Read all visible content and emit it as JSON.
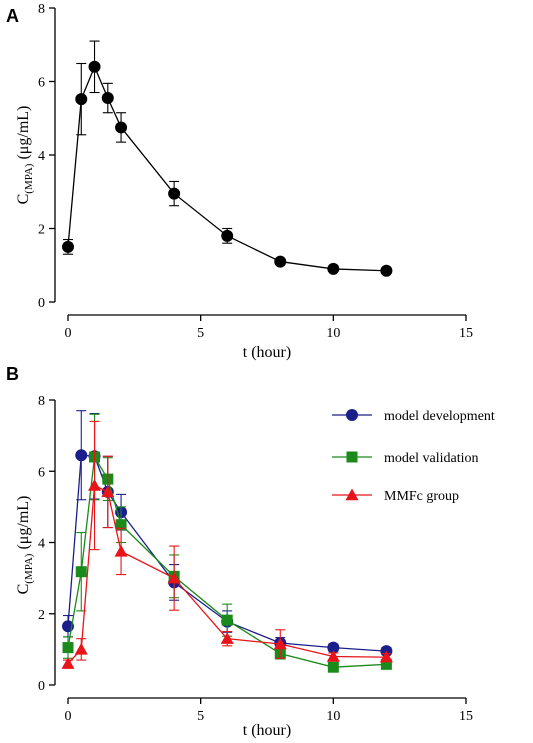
{
  "chart_data": [
    {
      "type": "line",
      "panel_label": "A",
      "xlabel": "t (hour)",
      "ylabel_main": "C",
      "ylabel_sub": "(MPA)",
      "ylabel_unit": " (μg/mL)",
      "xlim": [
        0,
        15
      ],
      "ylim": [
        0,
        8
      ],
      "xticks": [
        0,
        5,
        10,
        15
      ],
      "yticks": [
        0,
        2,
        4,
        6,
        8
      ],
      "xtick_labels": [
        "0",
        "5",
        "10",
        "15"
      ],
      "ytick_labels": [
        "0",
        "2",
        "4",
        "6",
        "8"
      ],
      "grid": false,
      "series": [
        {
          "marker": "circle",
          "color": "#000000",
          "x": [
            0,
            0.5,
            1,
            1.5,
            2,
            4,
            6,
            8,
            10,
            12
          ],
          "y": [
            1.5,
            5.52,
            6.4,
            5.55,
            4.75,
            2.95,
            1.8,
            1.1,
            0.9,
            0.85
          ],
          "err": [
            0.2,
            0.97,
            0.7,
            0.4,
            0.4,
            0.33,
            0.2,
            0,
            0,
            0
          ]
        }
      ]
    },
    {
      "type": "line",
      "panel_label": "B",
      "xlabel": "t (hour)",
      "ylabel_main": "C",
      "ylabel_sub": "(MPA)",
      "ylabel_unit": " (μg/mL)",
      "xlim": [
        0,
        15
      ],
      "ylim": [
        0,
        8
      ],
      "xticks": [
        0,
        5,
        10,
        15
      ],
      "yticks": [
        0,
        2,
        4,
        6,
        8
      ],
      "xtick_labels": [
        "0",
        "5",
        "10",
        "15"
      ],
      "ytick_labels": [
        "0",
        "2",
        "4",
        "6",
        "8"
      ],
      "grid": false,
      "legend_position": "top-right",
      "series": [
        {
          "name": "model development",
          "marker": "circle",
          "color": "#1a1f8c",
          "x": [
            0,
            0.5,
            1,
            1.5,
            2,
            4,
            6,
            8,
            10,
            12
          ],
          "y": [
            1.65,
            6.45,
            6.42,
            5.42,
            4.85,
            2.88,
            1.78,
            1.18,
            1.05,
            0.95
          ],
          "err": [
            0.3,
            1.25,
            1.2,
            1.0,
            0.5,
            0.5,
            0.3,
            0.15,
            0.1,
            0.1
          ]
        },
        {
          "name": "model validation",
          "marker": "square",
          "color": "#1a8a1a",
          "x": [
            0,
            0.5,
            1,
            1.5,
            2,
            4,
            6,
            8,
            10,
            12
          ],
          "y": [
            1.05,
            3.18,
            6.4,
            5.78,
            4.5,
            3.05,
            1.82,
            0.88,
            0.5,
            0.58
          ],
          "err": [
            0.3,
            1.1,
            1.2,
            0.6,
            0.5,
            0.6,
            0.45,
            0.15,
            0.1,
            0.1
          ]
        },
        {
          "name": "MMFc group",
          "marker": "triangle",
          "color": "#e8141a",
          "x": [
            0,
            0.5,
            1,
            1.5,
            2,
            4,
            6,
            8,
            10,
            12
          ],
          "y": [
            0.6,
            1.0,
            5.6,
            5.42,
            3.75,
            3.0,
            1.3,
            1.15,
            0.8,
            0.78
          ],
          "err": [
            0.1,
            0.3,
            1.8,
            1.0,
            0.65,
            0.9,
            0.2,
            0.4,
            0.1,
            0.1
          ]
        }
      ]
    }
  ]
}
